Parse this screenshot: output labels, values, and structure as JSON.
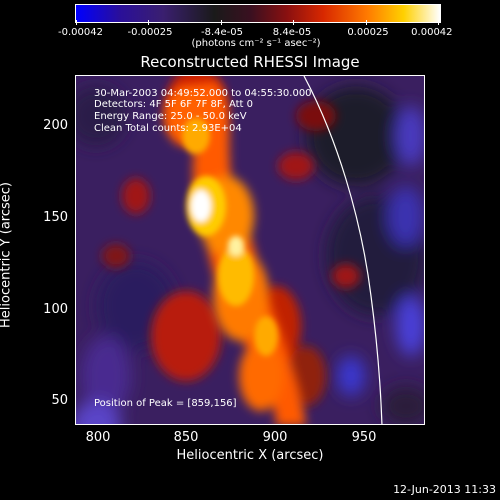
{
  "colorbar": {
    "ticks": [
      "-0.00042",
      "-0.00025",
      "-8.4e-05",
      "8.4e-05",
      "0.00025",
      "0.00042"
    ],
    "units": "(photons cm⁻² s⁻¹ asec⁻²)"
  },
  "title": "Reconstructed RHESSI Image",
  "info": {
    "time_range": "30-Mar-2003 04:49:52.000 to 04:55:30.000",
    "detectors": "Detectors: 4F 5F 6F 7F 8F, Att 0",
    "energy": "Energy Range: 25.0 - 50.0 keV",
    "clean": "Clean    Total counts: 2.93E+04",
    "peak": "Position of Peak = [859,156]"
  },
  "axes": {
    "xlabel": "Heliocentric X (arcsec)",
    "ylabel": "Heliocentric Y (arcsec)",
    "xticks": [
      "800",
      "850",
      "900",
      "950"
    ],
    "yticks": [
      "200",
      "150",
      "100",
      "50"
    ]
  },
  "timestamp": "12-Jun-2013 11:33",
  "colors": {
    "background": "#000000",
    "frame": "#ffffff"
  }
}
